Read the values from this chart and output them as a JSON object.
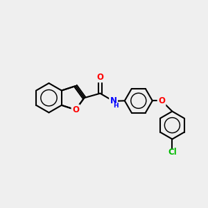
{
  "bg_color": "#efefef",
  "bond_color": "#000000",
  "bond_width": 1.5,
  "atom_colors": {
    "O": "#ff0000",
    "N": "#0000ff",
    "Cl": "#00bb00",
    "C": "#000000"
  },
  "font_size_atom": 8.5,
  "font_size_H": 6.5
}
